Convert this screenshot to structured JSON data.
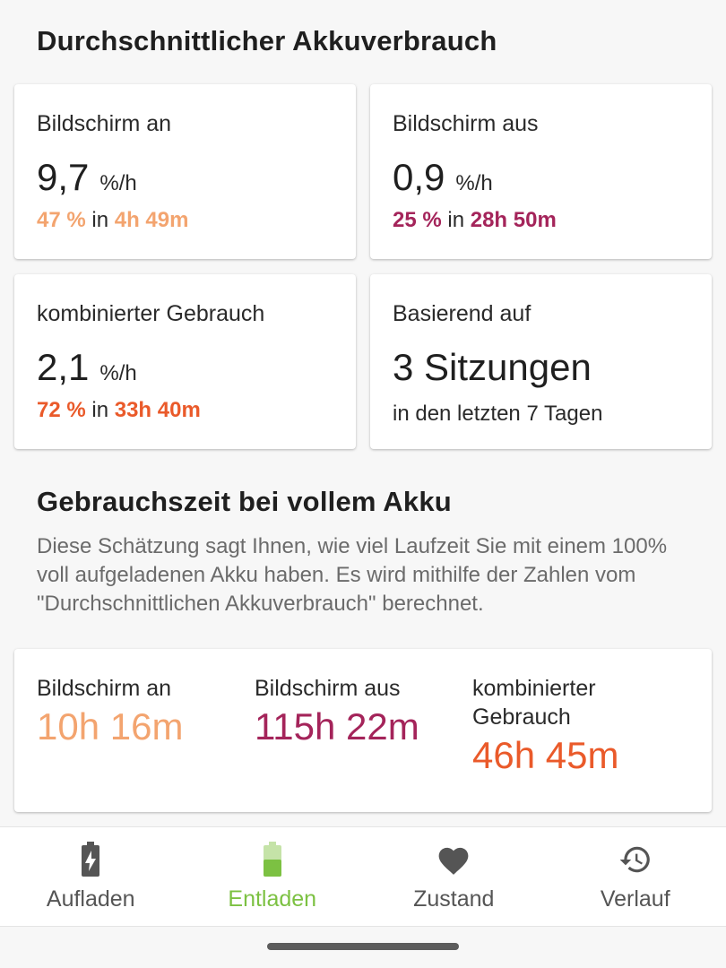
{
  "colors": {
    "screen_on": "#f3a46f",
    "screen_off": "#a4245a",
    "combined": "#ea5a2a",
    "nav_active": "#7cc142",
    "nav_inactive": "#555555"
  },
  "average": {
    "title": "Durchschnittlicher Akkuverbrauch",
    "screen_on": {
      "label": "Bildschirm an",
      "rate": "9,7",
      "unit": "%/h",
      "percent": "47 %",
      "in": "in",
      "duration": "4h 49m"
    },
    "screen_off": {
      "label": "Bildschirm aus",
      "rate": "0,9",
      "unit": "%/h",
      "percent": "25 %",
      "in": "in",
      "duration": "28h 50m"
    },
    "combined": {
      "label": "kombinierter Gebrauch",
      "rate": "2,1",
      "unit": "%/h",
      "percent": "72 %",
      "in": "in",
      "duration": "33h 40m"
    },
    "based_on": {
      "label": "Basierend auf",
      "value": "3 Sitzungen",
      "sub": "in den letzten 7 Tagen"
    }
  },
  "full_charge": {
    "title": "Gebrauchszeit bei vollem Akku",
    "description": "Diese Schätzung sagt Ihnen, wie viel Laufzeit Sie mit einem 100% voll aufgeladenen Akku haben. Es wird mithilfe der Zahlen vom \"Durchschnittlichen Akkuverbrauch\" berechnet.",
    "screen_on": {
      "label": "Bildschirm an",
      "value": "10h 16m"
    },
    "screen_off": {
      "label": "Bildschirm aus",
      "value": "115h 22m"
    },
    "combined": {
      "label": "kombinierter Gebrauch",
      "value": "46h 45m"
    }
  },
  "nav": {
    "items": [
      {
        "label": "Aufladen",
        "icon": "battery-charging-icon",
        "active": false
      },
      {
        "label": "Entladen",
        "icon": "battery-discharging-icon",
        "active": true
      },
      {
        "label": "Zustand",
        "icon": "heart-icon",
        "active": false
      },
      {
        "label": "Verlauf",
        "icon": "history-icon",
        "active": false
      }
    ]
  }
}
